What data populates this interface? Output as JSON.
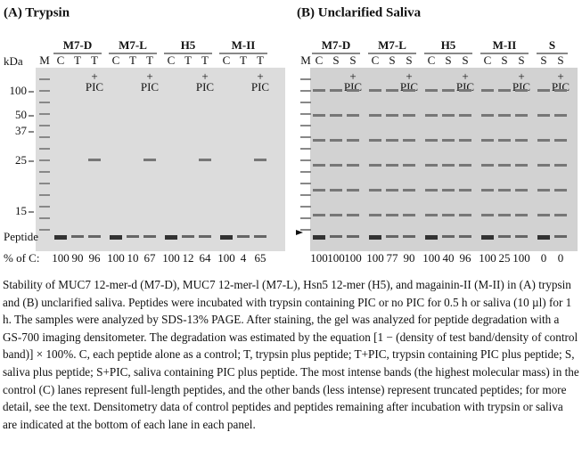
{
  "panels": [
    {
      "title": "(A) Trypsin",
      "unit": "kDa",
      "lead": [
        "M"
      ],
      "groups": [
        {
          "name": "M7-D",
          "lanes": [
            "C",
            "T",
            "T"
          ]
        },
        {
          "name": "M7-L",
          "lanes": [
            "C",
            "T",
            "T"
          ]
        },
        {
          "name": "H5",
          "lanes": [
            "C",
            "T",
            "T"
          ]
        },
        {
          "name": "M-II",
          "lanes": [
            "C",
            "T",
            "T"
          ]
        }
      ],
      "plus": "+",
      "pic": "PIC",
      "markers": [
        "100",
        "50",
        "37",
        "25",
        "15"
      ],
      "peptide": "Peptide",
      "percent_label": "% of C:",
      "percentages": [
        "100",
        "90",
        "96",
        "100",
        "10",
        "67",
        "100",
        "12",
        "64",
        "100",
        "4",
        "65"
      ]
    },
    {
      "title": "(B) Unclarified Saliva",
      "lead": [
        "M"
      ],
      "groups": [
        {
          "name": "M7-D",
          "lanes": [
            "C",
            "S",
            "S"
          ]
        },
        {
          "name": "M7-L",
          "lanes": [
            "C",
            "S",
            "S"
          ]
        },
        {
          "name": "H5",
          "lanes": [
            "C",
            "S",
            "S"
          ]
        },
        {
          "name": "M-II",
          "lanes": [
            "C",
            "S",
            "S"
          ]
        },
        {
          "name": "S",
          "lanes": [
            "S",
            "S"
          ]
        }
      ],
      "plus": "+",
      "pic": "PIC",
      "percentages": [
        "100",
        "100",
        "100",
        "100",
        "77",
        "90",
        "100",
        "40",
        "96",
        "100",
        "25",
        "100",
        "0",
        "0"
      ]
    }
  ],
  "caption": "Stability of MUC7 12-mer-d (M7-D), MUC7 12-mer-l (M7-L), Hsn5 12-mer (H5), and magainin-II (M-II) in (A) trypsin and (B) unclarified saliva. Peptides were incubated with trypsin containing PIC or no PIC for 0.5 h or saliva (10 µl) for 1 h. The samples were analyzed by SDS-13% PAGE. After staining, the gel was analyzed for peptide degradation with a GS-700 imaging densitometer. The degradation was estimated by the equation [1 − (density of test band/density of control band)] × 100%. C, each peptide alone as a control; T, trypsin plus peptide; T+PIC, trypsin containing PIC plus peptide; S, saliva plus peptide; S+PIC, saliva containing PIC plus peptide. The most intense bands (the highest molecular mass) in the control (C) lanes represent full-length peptides, and the other bands (less intense) represent truncated peptides; for more detail, see the text. Densitometry data of control peptides and peptides remaining after incubation with trypsin or saliva are indicated at the bottom of each lane in each panel."
}
